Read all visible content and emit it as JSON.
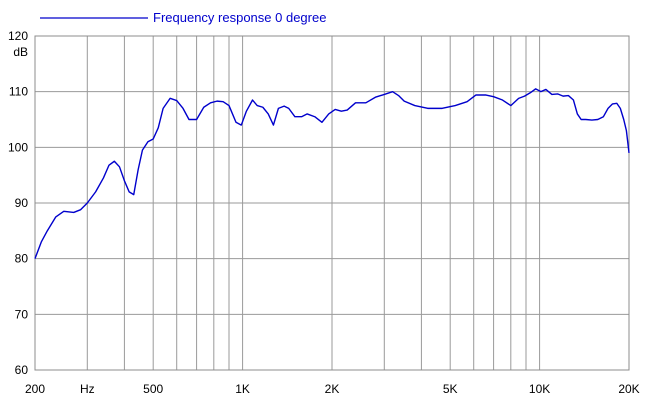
{
  "colors": {
    "series": "#0000cc",
    "grid": "#9a9a9a",
    "frame": "#8c8c8c",
    "text": "#000000"
  },
  "chart_data": {
    "type": "line",
    "title": "",
    "xlabel": "",
    "ylabel": "",
    "y_unit": "dB",
    "x_scale": "log",
    "xlim": [
      200,
      20000
    ],
    "ylim": [
      60,
      120
    ],
    "grid": true,
    "legend_position": "top-left",
    "x_ticks": [
      {
        "value": 200,
        "label": "200"
      },
      {
        "value": 300,
        "label": "Hz"
      },
      {
        "value": 500,
        "label": "500"
      },
      {
        "value": 1000,
        "label": "1K"
      },
      {
        "value": 2000,
        "label": "2K"
      },
      {
        "value": 5000,
        "label": "5K"
      },
      {
        "value": 10000,
        "label": "10K"
      },
      {
        "value": 20000,
        "label": "20K"
      }
    ],
    "x_gridlines": [
      200,
      300,
      400,
      500,
      600,
      700,
      800,
      900,
      1000,
      2000,
      3000,
      4000,
      5000,
      6000,
      7000,
      8000,
      9000,
      10000,
      20000
    ],
    "y_ticks": [
      60,
      70,
      80,
      90,
      100,
      110,
      120
    ],
    "series": [
      {
        "name": "Frequency response 0 degree",
        "color": "#0000cc",
        "points": [
          [
            200,
            80
          ],
          [
            210,
            83
          ],
          [
            220,
            85
          ],
          [
            235,
            87.5
          ],
          [
            250,
            88.5
          ],
          [
            270,
            88.3
          ],
          [
            285,
            88.8
          ],
          [
            300,
            90
          ],
          [
            320,
            92
          ],
          [
            340,
            94.5
          ],
          [
            355,
            96.8
          ],
          [
            370,
            97.5
          ],
          [
            385,
            96.5
          ],
          [
            400,
            94
          ],
          [
            415,
            92
          ],
          [
            430,
            91.5
          ],
          [
            445,
            96
          ],
          [
            460,
            99.5
          ],
          [
            480,
            101
          ],
          [
            500,
            101.5
          ],
          [
            520,
            103.5
          ],
          [
            540,
            107
          ],
          [
            570,
            108.8
          ],
          [
            600,
            108.4
          ],
          [
            630,
            107
          ],
          [
            660,
            105
          ],
          [
            700,
            105
          ],
          [
            740,
            107.2
          ],
          [
            780,
            108
          ],
          [
            820,
            108.3
          ],
          [
            860,
            108.2
          ],
          [
            900,
            107.5
          ],
          [
            950,
            104.5
          ],
          [
            990,
            104
          ],
          [
            1030,
            106.5
          ],
          [
            1080,
            108.5
          ],
          [
            1120,
            107.5
          ],
          [
            1170,
            107.2
          ],
          [
            1220,
            106
          ],
          [
            1270,
            104
          ],
          [
            1320,
            107
          ],
          [
            1380,
            107.4
          ],
          [
            1430,
            107
          ],
          [
            1500,
            105.5
          ],
          [
            1580,
            105.5
          ],
          [
            1650,
            106
          ],
          [
            1750,
            105.5
          ],
          [
            1850,
            104.5
          ],
          [
            1950,
            106
          ],
          [
            2050,
            106.8
          ],
          [
            2150,
            106.5
          ],
          [
            2250,
            106.7
          ],
          [
            2400,
            108
          ],
          [
            2600,
            108
          ],
          [
            2800,
            109
          ],
          [
            3000,
            109.5
          ],
          [
            3200,
            110
          ],
          [
            3350,
            109.3
          ],
          [
            3500,
            108.3
          ],
          [
            3800,
            107.5
          ],
          [
            4200,
            107
          ],
          [
            4700,
            107
          ],
          [
            5200,
            107.5
          ],
          [
            5700,
            108.2
          ],
          [
            6100,
            109.4
          ],
          [
            6600,
            109.4
          ],
          [
            7000,
            109.1
          ],
          [
            7500,
            108.5
          ],
          [
            8000,
            107.5
          ],
          [
            8500,
            108.8
          ],
          [
            8900,
            109.2
          ],
          [
            9300,
            109.8
          ],
          [
            9700,
            110.5
          ],
          [
            10100,
            110
          ],
          [
            10500,
            110.4
          ],
          [
            11000,
            109.5
          ],
          [
            11500,
            109.6
          ],
          [
            12000,
            109.2
          ],
          [
            12500,
            109.3
          ],
          [
            13000,
            108.5
          ],
          [
            13400,
            106
          ],
          [
            13800,
            105
          ],
          [
            14300,
            105
          ],
          [
            15000,
            104.9
          ],
          [
            15700,
            105
          ],
          [
            16400,
            105.5
          ],
          [
            17000,
            107
          ],
          [
            17600,
            107.8
          ],
          [
            18200,
            107.9
          ],
          [
            18700,
            107
          ],
          [
            19200,
            105
          ],
          [
            19600,
            103
          ],
          [
            19900,
            100
          ],
          [
            20000,
            99
          ]
        ]
      }
    ]
  }
}
